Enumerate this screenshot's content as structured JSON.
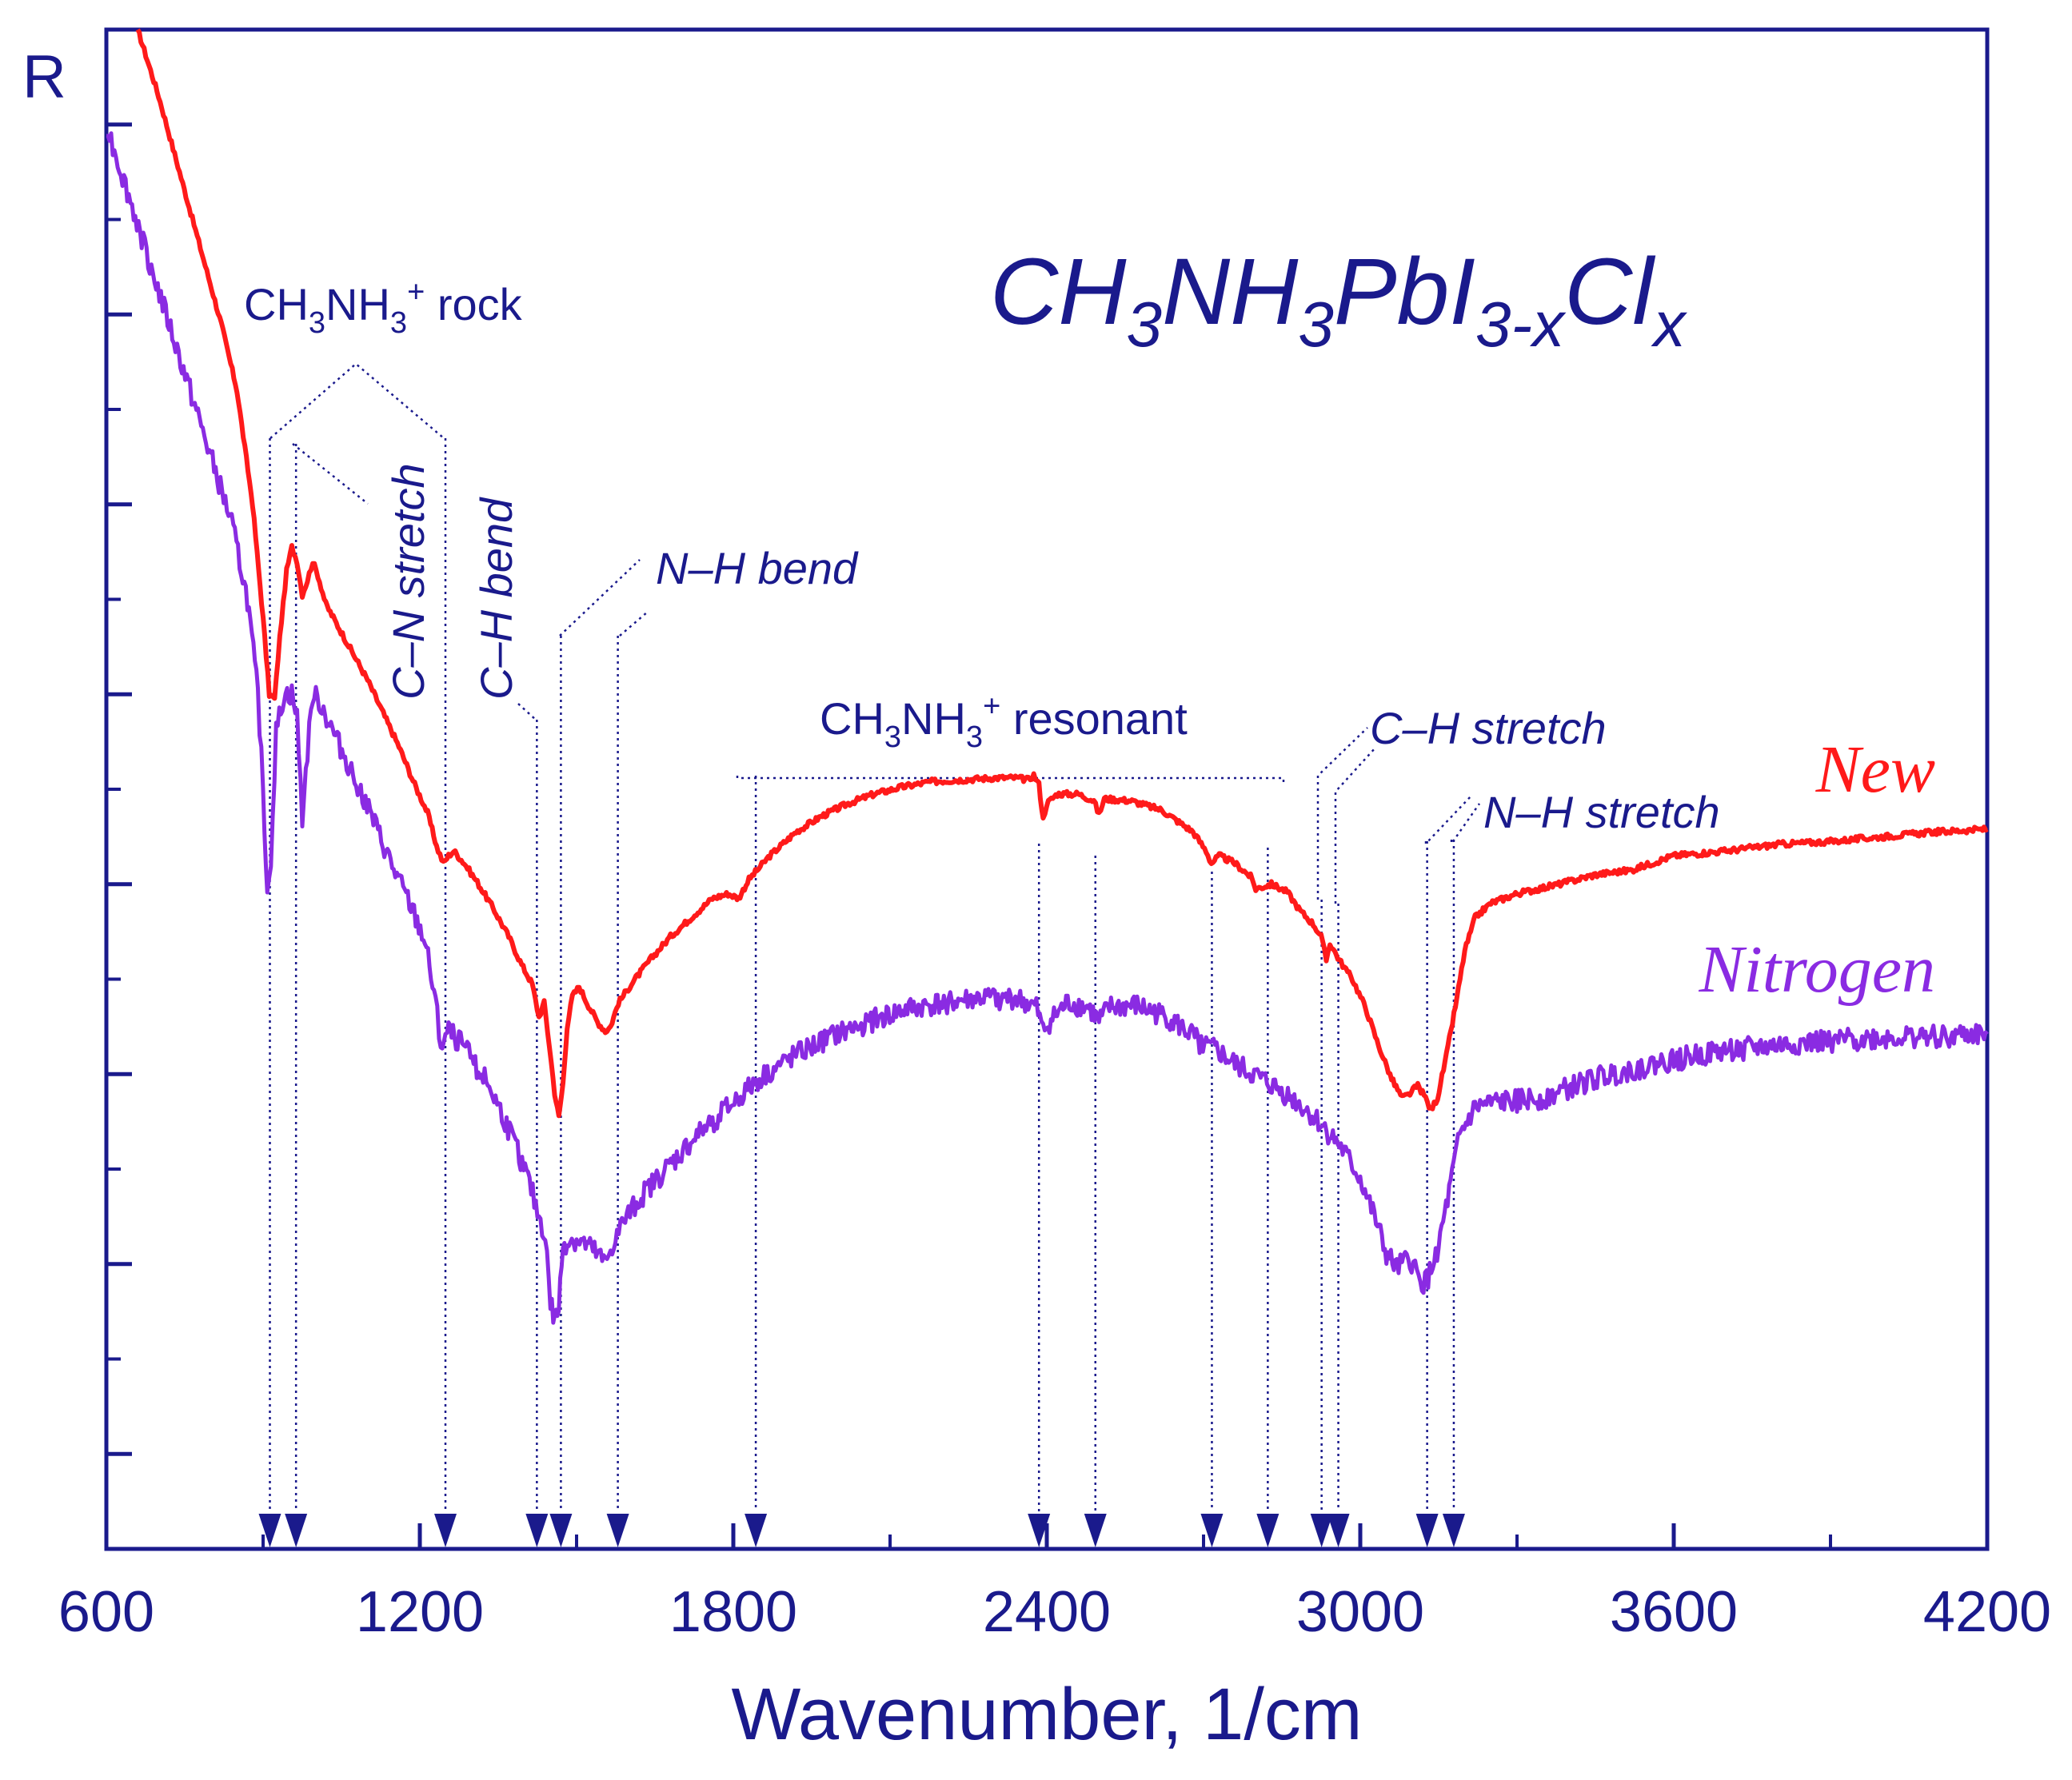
{
  "chart_data": {
    "type": "line",
    "title": "CH3NH3PbI3-xClx",
    "title_parts": [
      "CH",
      "3",
      "NH",
      "3",
      "PbI",
      "3-x",
      "Cl",
      "x"
    ],
    "xlabel": "Wavenumber, 1/cm",
    "ylabel": "R",
    "xlim": [
      600,
      4200
    ],
    "ylim": [
      0,
      16
    ],
    "grid": false,
    "legend_position": "right",
    "x_ticks": [
      600,
      1200,
      1800,
      2400,
      3000,
      3600,
      4200
    ],
    "x_tick_labels": [
      "600",
      "1200",
      "1800",
      "2400",
      "3000",
      "3600",
      "4200"
    ],
    "x_minor_ticks": [
      900,
      1500,
      2100,
      2700,
      3300,
      3900
    ],
    "y_ticks": [
      1,
      2,
      3,
      4,
      5,
      6,
      7,
      8,
      9,
      10,
      11,
      12,
      13,
      14,
      15
    ],
    "series": [
      {
        "name": "New",
        "color": "#ff1a1a",
        "noise": 0.03,
        "points": [
          [
            660,
            16.0
          ],
          [
            700,
            15.3
          ],
          [
            740,
            14.5
          ],
          [
            780,
            13.7
          ],
          [
            820,
            12.9
          ],
          [
            850,
            12.2
          ],
          [
            880,
            11.0
          ],
          [
            900,
            9.8
          ],
          [
            912,
            9.0
          ],
          [
            922,
            8.95
          ],
          [
            932,
            9.6
          ],
          [
            945,
            10.3
          ],
          [
            955,
            10.55
          ],
          [
            965,
            10.4
          ],
          [
            975,
            10.05
          ],
          [
            985,
            10.2
          ],
          [
            995,
            10.4
          ],
          [
            1005,
            10.25
          ],
          [
            1020,
            9.95
          ],
          [
            1040,
            9.75
          ],
          [
            1070,
            9.45
          ],
          [
            1100,
            9.15
          ],
          [
            1130,
            8.8
          ],
          [
            1160,
            8.45
          ],
          [
            1190,
            8.05
          ],
          [
            1215,
            7.75
          ],
          [
            1232,
            7.4
          ],
          [
            1245,
            7.22
          ],
          [
            1255,
            7.3
          ],
          [
            1265,
            7.35
          ],
          [
            1285,
            7.22
          ],
          [
            1310,
            7.02
          ],
          [
            1340,
            6.75
          ],
          [
            1370,
            6.45
          ],
          [
            1395,
            6.15
          ],
          [
            1415,
            5.95
          ],
          [
            1428,
            5.6
          ],
          [
            1438,
            5.75
          ],
          [
            1448,
            5.3
          ],
          [
            1458,
            4.8
          ],
          [
            1466,
            4.55
          ],
          [
            1474,
            4.9
          ],
          [
            1482,
            5.5
          ],
          [
            1492,
            5.82
          ],
          [
            1505,
            5.92
          ],
          [
            1520,
            5.75
          ],
          [
            1540,
            5.55
          ],
          [
            1555,
            5.45
          ],
          [
            1565,
            5.5
          ],
          [
            1580,
            5.75
          ],
          [
            1605,
            5.95
          ],
          [
            1640,
            6.2
          ],
          [
            1680,
            6.45
          ],
          [
            1720,
            6.65
          ],
          [
            1760,
            6.85
          ],
          [
            1790,
            6.9
          ],
          [
            1810,
            6.85
          ],
          [
            1830,
            7.05
          ],
          [
            1870,
            7.3
          ],
          [
            1920,
            7.55
          ],
          [
            1970,
            7.72
          ],
          [
            2020,
            7.85
          ],
          [
            2070,
            7.95
          ],
          [
            2120,
            8.02
          ],
          [
            2180,
            8.08
          ],
          [
            2240,
            8.1
          ],
          [
            2300,
            8.12
          ],
          [
            2340,
            8.12
          ],
          [
            2365,
            8.1
          ],
          [
            2375,
            8.15
          ],
          [
            2385,
            8.05
          ],
          [
            2393,
            7.68
          ],
          [
            2400,
            7.85
          ],
          [
            2420,
            7.95
          ],
          [
            2460,
            7.95
          ],
          [
            2490,
            7.88
          ],
          [
            2500,
            7.73
          ],
          [
            2510,
            7.9
          ],
          [
            2560,
            7.88
          ],
          [
            2620,
            7.78
          ],
          [
            2680,
            7.55
          ],
          [
            2705,
            7.35
          ],
          [
            2715,
            7.22
          ],
          [
            2730,
            7.3
          ],
          [
            2760,
            7.22
          ],
          [
            2790,
            7.08
          ],
          [
            2800,
            6.95
          ],
          [
            2830,
            7.0
          ],
          [
            2860,
            6.92
          ],
          [
            2885,
            6.72
          ],
          [
            2910,
            6.58
          ],
          [
            2925,
            6.45
          ],
          [
            2935,
            6.2
          ],
          [
            2942,
            6.38
          ],
          [
            2960,
            6.2
          ],
          [
            2985,
            6.0
          ],
          [
            3010,
            5.7
          ],
          [
            3035,
            5.3
          ],
          [
            3060,
            4.95
          ],
          [
            3080,
            4.75
          ],
          [
            3092,
            4.78
          ],
          [
            3110,
            4.88
          ],
          [
            3125,
            4.75
          ],
          [
            3135,
            4.62
          ],
          [
            3148,
            4.75
          ],
          [
            3165,
            5.2
          ],
          [
            3185,
            5.8
          ],
          [
            3200,
            6.3
          ],
          [
            3220,
            6.65
          ],
          [
            3250,
            6.8
          ],
          [
            3300,
            6.9
          ],
          [
            3380,
            7.0
          ],
          [
            3450,
            7.1
          ],
          [
            3520,
            7.15
          ],
          [
            3600,
            7.3
          ],
          [
            3700,
            7.35
          ],
          [
            3800,
            7.42
          ],
          [
            3900,
            7.45
          ],
          [
            4000,
            7.5
          ],
          [
            4100,
            7.55
          ],
          [
            4200,
            7.58
          ]
        ]
      },
      {
        "name": "Nitrogen",
        "color": "#8a2be2",
        "noise": 0.12,
        "points": [
          [
            600,
            15.0
          ],
          [
            640,
            14.3
          ],
          [
            680,
            13.6
          ],
          [
            720,
            12.9
          ],
          [
            760,
            12.2
          ],
          [
            800,
            11.5
          ],
          [
            840,
            10.8
          ],
          [
            870,
            10.0
          ],
          [
            890,
            9.0
          ],
          [
            900,
            8.0
          ],
          [
            908,
            6.9
          ],
          [
            915,
            7.3
          ],
          [
            925,
            8.6
          ],
          [
            940,
            9.0
          ],
          [
            955,
            9.0
          ],
          [
            965,
            8.75
          ],
          [
            975,
            7.7
          ],
          [
            985,
            8.4
          ],
          [
            995,
            9.0
          ],
          [
            1010,
            8.9
          ],
          [
            1030,
            8.65
          ],
          [
            1060,
            8.3
          ],
          [
            1090,
            7.95
          ],
          [
            1120,
            7.55
          ],
          [
            1150,
            7.15
          ],
          [
            1180,
            6.8
          ],
          [
            1210,
            6.4
          ],
          [
            1230,
            5.75
          ],
          [
            1240,
            5.3
          ],
          [
            1255,
            5.45
          ],
          [
            1275,
            5.35
          ],
          [
            1300,
            5.15
          ],
          [
            1330,
            4.9
          ],
          [
            1360,
            4.55
          ],
          [
            1390,
            4.15
          ],
          [
            1410,
            3.85
          ],
          [
            1425,
            3.55
          ],
          [
            1440,
            3.3
          ],
          [
            1450,
            2.6
          ],
          [
            1458,
            2.4
          ],
          [
            1466,
            2.55
          ],
          [
            1474,
            3.2
          ],
          [
            1485,
            3.25
          ],
          [
            1500,
            3.25
          ],
          [
            1520,
            3.2
          ],
          [
            1540,
            3.1
          ],
          [
            1555,
            3.0
          ],
          [
            1565,
            3.15
          ],
          [
            1590,
            3.45
          ],
          [
            1630,
            3.75
          ],
          [
            1680,
            4.05
          ],
          [
            1730,
            4.35
          ],
          [
            1790,
            4.65
          ],
          [
            1850,
            4.95
          ],
          [
            1920,
            5.2
          ],
          [
            1990,
            5.4
          ],
          [
            2060,
            5.55
          ],
          [
            2130,
            5.68
          ],
          [
            2200,
            5.75
          ],
          [
            2270,
            5.8
          ],
          [
            2340,
            5.8
          ],
          [
            2380,
            5.7
          ],
          [
            2393,
            5.45
          ],
          [
            2405,
            5.55
          ],
          [
            2440,
            5.75
          ],
          [
            2480,
            5.7
          ],
          [
            2500,
            5.55
          ],
          [
            2520,
            5.7
          ],
          [
            2570,
            5.72
          ],
          [
            2630,
            5.6
          ],
          [
            2680,
            5.4
          ],
          [
            2705,
            5.28
          ],
          [
            2725,
            5.25
          ],
          [
            2760,
            5.1
          ],
          [
            2800,
            4.98
          ],
          [
            2840,
            4.85
          ],
          [
            2880,
            4.7
          ],
          [
            2920,
            4.5
          ],
          [
            2960,
            4.25
          ],
          [
            3000,
            3.9
          ],
          [
            3030,
            3.45
          ],
          [
            3050,
            3.1
          ],
          [
            3070,
            2.95
          ],
          [
            3080,
            3.0
          ],
          [
            3095,
            3.05
          ],
          [
            3105,
            2.95
          ],
          [
            3115,
            2.78
          ],
          [
            3130,
            2.85
          ],
          [
            3150,
            3.2
          ],
          [
            3170,
            3.75
          ],
          [
            3190,
            4.35
          ],
          [
            3220,
            4.65
          ],
          [
            3260,
            4.7
          ],
          [
            3300,
            4.72
          ],
          [
            3350,
            4.75
          ],
          [
            3400,
            4.85
          ],
          [
            3450,
            4.95
          ],
          [
            3520,
            5.05
          ],
          [
            3600,
            5.15
          ],
          [
            3700,
            5.25
          ],
          [
            3800,
            5.3
          ],
          [
            3900,
            5.35
          ],
          [
            4000,
            5.38
          ],
          [
            4100,
            5.4
          ],
          [
            4200,
            5.42
          ]
        ]
      }
    ],
    "peak_markers": [
      913,
      963,
      1249,
      1424,
      1470,
      1579,
      1843,
      2385,
      2493,
      2716,
      2823,
      2926,
      2958,
      3128,
      3179
    ],
    "annotations": [
      {
        "label": "CH",
        "sub1": "3",
        "mid": "NH",
        "sub2": "3",
        "sup": "+",
        "tail": " rock"
      },
      {
        "label": "C–N stretch"
      },
      {
        "label": "C–H bend"
      },
      {
        "label": "N–H bend"
      },
      {
        "label": "CH",
        "sub1": "3",
        "mid": "NH",
        "sub2": "3",
        "sup": "+",
        "tail": " resonant"
      },
      {
        "label": "C–H stretch"
      },
      {
        "label": "N–H stretch"
      }
    ]
  }
}
